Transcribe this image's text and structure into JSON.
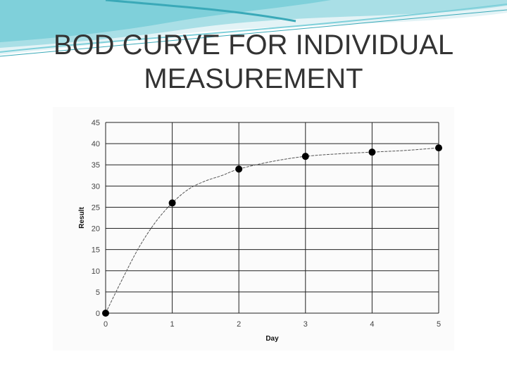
{
  "slide": {
    "title": "BOD CURVE FOR INDIVIDUAL MEASUREMENT",
    "colors": {
      "banner": "#7fd0da",
      "banner_dark": "#3aa9b8",
      "title_text": "#333333",
      "curve": "#555555",
      "points": "#000000"
    }
  },
  "chart_data": {
    "type": "scatter",
    "title": "",
    "xlabel": "Day",
    "ylabel": "Result",
    "xlim": [
      0,
      5
    ],
    "ylim": [
      0,
      45
    ],
    "xticks": [
      "0",
      "1",
      "2",
      "3",
      "4",
      "5"
    ],
    "yticks": [
      "0",
      "5",
      "10",
      "15",
      "20",
      "25",
      "30",
      "35",
      "40",
      "45"
    ],
    "grid": true,
    "points": {
      "x": [
        0,
        1,
        2,
        3,
        4,
        5
      ],
      "y": [
        0,
        26,
        34,
        37,
        38,
        39
      ]
    },
    "fit_curve": {
      "x": [
        0,
        0.25,
        0.5,
        0.75,
        1,
        1.25,
        1.5,
        1.75,
        2,
        2.5,
        3,
        3.5,
        4,
        4.5,
        5
      ],
      "y": [
        0,
        8,
        15.5,
        21.5,
        26,
        29.3,
        31.2,
        32.5,
        34,
        35.8,
        37,
        37.6,
        38,
        38.4,
        39
      ]
    }
  }
}
